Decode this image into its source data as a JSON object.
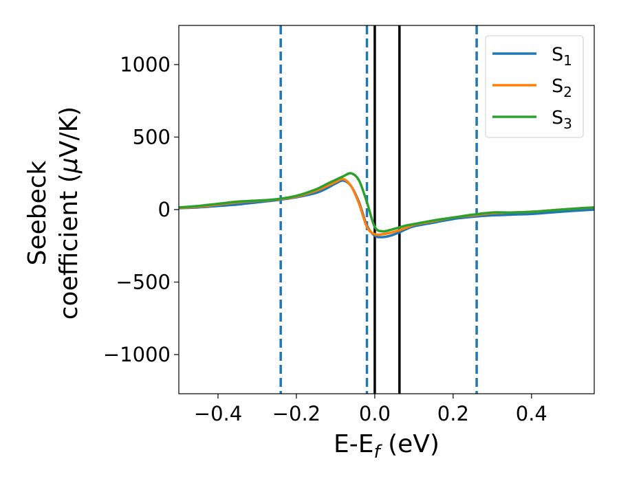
{
  "chart_data": {
    "type": "line",
    "title": "",
    "xlabel": "E-E_f (eV)",
    "xlabel_parts": {
      "main": "E-E",
      "sub": "f",
      "tail": " (eV)"
    },
    "ylabel_line1": "Seebeck",
    "ylabel_line2_pre": "coefficient  (",
    "ylabel_line2_mu": "μ",
    "ylabel_line2_post": "V/K)",
    "xlim": [
      -0.5,
      0.56
    ],
    "ylim": [
      -1270,
      1270
    ],
    "xticks": [
      -0.4,
      -0.2,
      0.0,
      0.2,
      0.4
    ],
    "xtick_labels": [
      "−0.4",
      "−0.2",
      "0.0",
      "0.2",
      "0.4"
    ],
    "yticks": [
      -1000,
      -500,
      0,
      500,
      1000
    ],
    "ytick_labels": [
      "−1000",
      "−500",
      "0",
      "500",
      "1000"
    ],
    "grid": false,
    "legend_position": "top-right",
    "series": [
      {
        "name": "S",
        "sub": "1",
        "color": "#1f77b4",
        "x": [
          -0.5,
          -0.45,
          -0.4,
          -0.35,
          -0.3,
          -0.25,
          -0.2,
          -0.15,
          -0.12,
          -0.1,
          -0.08,
          -0.06,
          -0.04,
          -0.02,
          0.0,
          0.02,
          0.04,
          0.06,
          0.08,
          0.1,
          0.15,
          0.2,
          0.25,
          0.3,
          0.35,
          0.4,
          0.45,
          0.5,
          0.56
        ],
        "y": [
          10,
          15,
          25,
          35,
          50,
          65,
          85,
          115,
          150,
          180,
          200,
          160,
          50,
          -110,
          -180,
          -190,
          -180,
          -160,
          -135,
          -115,
          -90,
          -65,
          -50,
          -40,
          -35,
          -30,
          -20,
          -10,
          0
        ]
      },
      {
        "name": "S",
        "sub": "2",
        "color": "#ff7f0e",
        "x": [
          -0.5,
          -0.45,
          -0.4,
          -0.35,
          -0.3,
          -0.25,
          -0.2,
          -0.15,
          -0.12,
          -0.1,
          -0.08,
          -0.06,
          -0.04,
          -0.02,
          0.0,
          0.02,
          0.04,
          0.06,
          0.08,
          0.1,
          0.15,
          0.2,
          0.25,
          0.3,
          0.35,
          0.4,
          0.45,
          0.5,
          0.56
        ],
        "y": [
          12,
          20,
          35,
          50,
          60,
          70,
          90,
          130,
          165,
          190,
          210,
          160,
          40,
          -120,
          -170,
          -170,
          -160,
          -145,
          -125,
          -105,
          -80,
          -55,
          -40,
          -25,
          -20,
          -15,
          -5,
          5,
          15
        ]
      },
      {
        "name": "S",
        "sub": "3",
        "color": "#2ca02c",
        "x": [
          -0.5,
          -0.45,
          -0.4,
          -0.35,
          -0.3,
          -0.25,
          -0.2,
          -0.15,
          -0.12,
          -0.1,
          -0.08,
          -0.06,
          -0.04,
          -0.02,
          0.0,
          0.02,
          0.04,
          0.06,
          0.08,
          0.1,
          0.15,
          0.2,
          0.25,
          0.3,
          0.35,
          0.4,
          0.45,
          0.5,
          0.56
        ],
        "y": [
          15,
          25,
          40,
          55,
          62,
          72,
          95,
          140,
          180,
          205,
          230,
          250,
          200,
          50,
          -120,
          -150,
          -140,
          -125,
          -110,
          -100,
          -75,
          -55,
          -35,
          -20,
          -20,
          -15,
          -5,
          5,
          15
        ]
      }
    ],
    "vertical_lines": [
      {
        "x": -0.24,
        "color": "#1f77b4",
        "style": "dashed"
      },
      {
        "x": -0.02,
        "color": "#1f77b4",
        "style": "dashed"
      },
      {
        "x": 0.0,
        "color": "#000000",
        "style": "solid"
      },
      {
        "x": 0.063,
        "color": "#000000",
        "style": "solid"
      },
      {
        "x": 0.26,
        "color": "#1f77b4",
        "style": "dashed"
      }
    ]
  }
}
